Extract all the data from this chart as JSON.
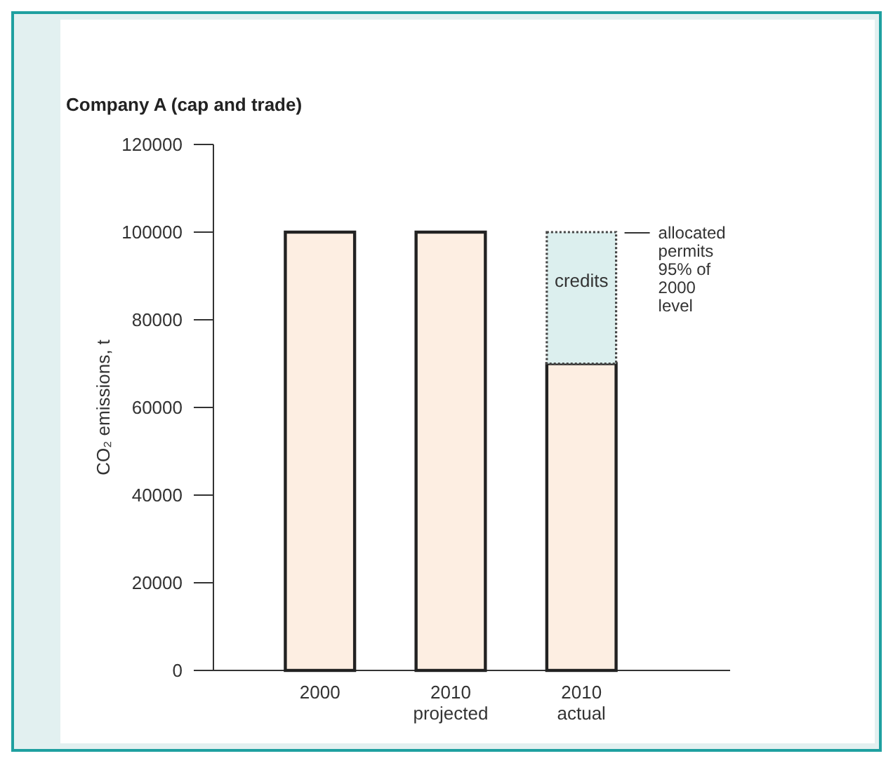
{
  "chart_data": {
    "type": "bar",
    "title": "Company A (cap and trade)",
    "ylabel": "CO₂ emissions, t",
    "categories": [
      "2000",
      "2010\nprojected",
      "2010\nactual"
    ],
    "series": [
      {
        "color": "#fdeee2",
        "values": [
          100000,
          100000,
          70000
        ]
      },
      {
        "name": "credits",
        "color": "#dcefee",
        "values": [
          null,
          null,
          30000
        ],
        "line_style": "dotted"
      }
    ],
    "stacked": true,
    "ylim": [
      0,
      120000
    ],
    "yticks": [
      0,
      20000,
      40000,
      60000,
      80000,
      100000,
      120000
    ],
    "grid": false,
    "annotations": [
      "allocated\npermits\n95% of\n2000\nlevel"
    ]
  }
}
